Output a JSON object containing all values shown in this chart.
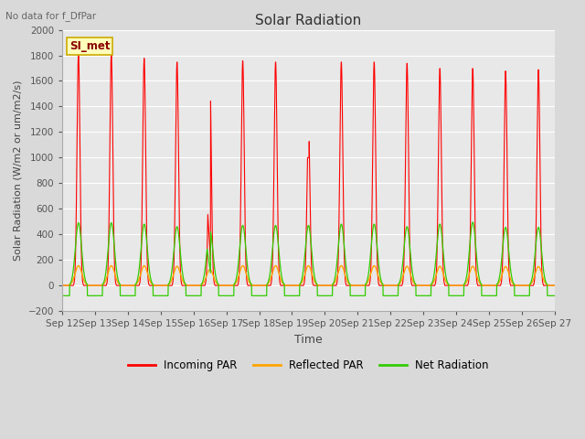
{
  "title": "Solar Radiation",
  "xlabel": "Time",
  "ylabel": "Solar Radiation (W/m2 or um/m2/s)",
  "top_left_text": "No data for f_DfPar",
  "box_label": "SI_met",
  "ylim": [
    -200,
    2000
  ],
  "yticks": [
    -200,
    0,
    200,
    400,
    600,
    800,
    1000,
    1200,
    1400,
    1600,
    1800,
    2000
  ],
  "xtick_labels": [
    "Sep 12",
    "Sep 13",
    "Sep 14",
    "Sep 15",
    "Sep 16",
    "Sep 17",
    "Sep 18",
    "Sep 19",
    "Sep 20",
    "Sep 21",
    "Sep 22",
    "Sep 23",
    "Sep 24",
    "Sep 25",
    "Sep 26",
    "Sep 27"
  ],
  "legend_entries": [
    "Incoming PAR",
    "Reflected PAR",
    "Net Radiation"
  ],
  "line_colors": [
    "#ff0000",
    "#ffa500",
    "#33cc00"
  ],
  "num_days": 15,
  "day_peaks_incoming": [
    1820,
    1820,
    1780,
    1750,
    1640,
    1760,
    1750,
    1280,
    1750,
    1750,
    1740,
    1700,
    1700,
    1680,
    1690
  ],
  "day_peaks_net": [
    490,
    490,
    480,
    460,
    430,
    470,
    470,
    470,
    480,
    480,
    460,
    480,
    495,
    455,
    455
  ],
  "day_peaks_reflected": [
    155,
    155,
    155,
    150,
    125,
    155,
    155,
    155,
    155,
    155,
    150,
    150,
    150,
    148,
    148
  ],
  "night_net": -80,
  "figsize": [
    6.4,
    4.8
  ],
  "dpi": 100,
  "fig_bg": "#d9d9d9",
  "plot_bg": "#e8e8e8"
}
